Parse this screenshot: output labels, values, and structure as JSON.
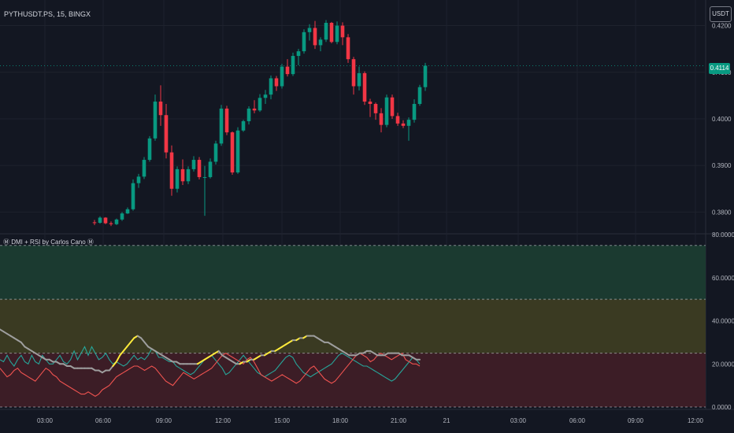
{
  "header": {
    "symbol": "PYTHUSDT.PS, 15, BINGX",
    "currency_button": "USDT",
    "last_price": "0.4114",
    "indicator_title": "Ⓜ DMI + RSI by Carlos Cano Ⓜ"
  },
  "colors": {
    "background": "#131722",
    "grid": "#1e222d",
    "up": "#089981",
    "down": "#f23645",
    "axis_text": "#b2b5be",
    "plus_di": "#26a69a",
    "minus_di": "#ef5350",
    "rsi_neutral": "#9e9e9e",
    "rsi_rising": "#ffeb3b",
    "zone_green": "#1b3a30",
    "zone_yellow": "#3a3a22",
    "zone_red": "#3c1d26"
  },
  "chart_data": [
    {
      "type": "candlestick",
      "x_ticks": [
        "03:00",
        "06:00",
        "09:00",
        "12:00",
        "15:00",
        "18:00",
        "21:00",
        "21",
        "03:00",
        "06:00",
        "09:00",
        "12:00"
      ],
      "y_ticks": [
        "0.4200",
        "0.4100",
        "0.4000",
        "0.3900",
        "0.3800"
      ],
      "ylim": [
        0.3755,
        0.4255
      ],
      "candles": [
        [
          0.3778,
          0.3783,
          0.3772,
          0.3777
        ],
        [
          0.3777,
          0.3791,
          0.3775,
          0.3788
        ],
        [
          0.3788,
          0.3789,
          0.3774,
          0.3776
        ],
        [
          0.3776,
          0.378,
          0.377,
          0.3774
        ],
        [
          0.3774,
          0.3786,
          0.3772,
          0.3784
        ],
        [
          0.3784,
          0.38,
          0.3781,
          0.3797
        ],
        [
          0.3797,
          0.381,
          0.3796,
          0.3806
        ],
        [
          0.3806,
          0.387,
          0.3803,
          0.3862
        ],
        [
          0.3862,
          0.3882,
          0.3852,
          0.3876
        ],
        [
          0.3876,
          0.3918,
          0.3871,
          0.3912
        ],
        [
          0.3912,
          0.3963,
          0.3908,
          0.3958
        ],
        [
          0.3958,
          0.4052,
          0.3953,
          0.4037
        ],
        [
          0.4037,
          0.4072,
          0.3985,
          0.4008
        ],
        [
          0.4008,
          0.4032,
          0.3915,
          0.3928
        ],
        [
          0.3928,
          0.3943,
          0.3835,
          0.385
        ],
        [
          0.385,
          0.3898,
          0.3842,
          0.3892
        ],
        [
          0.3892,
          0.3913,
          0.3858,
          0.3866
        ],
        [
          0.3866,
          0.3898,
          0.386,
          0.3892
        ],
        [
          0.3892,
          0.392,
          0.3887,
          0.3912
        ],
        [
          0.3912,
          0.3918,
          0.387,
          0.3875
        ],
        [
          0.3875,
          0.3899,
          0.3792,
          0.3875
        ],
        [
          0.3875,
          0.3915,
          0.3872,
          0.3908
        ],
        [
          0.3908,
          0.3953,
          0.3902,
          0.3947
        ],
        [
          0.3947,
          0.403,
          0.3942,
          0.4022
        ],
        [
          0.4022,
          0.4028,
          0.3965,
          0.3971
        ],
        [
          0.3971,
          0.3973,
          0.388,
          0.3885
        ],
        [
          0.3885,
          0.3982,
          0.3882,
          0.3975
        ],
        [
          0.3975,
          0.3998,
          0.3972,
          0.3995
        ],
        [
          0.3995,
          0.4027,
          0.3988,
          0.4022
        ],
        [
          0.4022,
          0.404,
          0.4012,
          0.4018
        ],
        [
          0.4018,
          0.4053,
          0.4015,
          0.4045
        ],
        [
          0.4045,
          0.4062,
          0.4032,
          0.4052
        ],
        [
          0.4052,
          0.4093,
          0.4042,
          0.4087
        ],
        [
          0.4087,
          0.4092,
          0.406,
          0.407
        ],
        [
          0.407,
          0.4118,
          0.4065,
          0.4112
        ],
        [
          0.4112,
          0.4128,
          0.4091,
          0.4096
        ],
        [
          0.4096,
          0.4142,
          0.4092,
          0.4135
        ],
        [
          0.4135,
          0.415,
          0.4115,
          0.4145
        ],
        [
          0.4145,
          0.4192,
          0.414,
          0.4186
        ],
        [
          0.4186,
          0.4203,
          0.4168,
          0.4195
        ],
        [
          0.4195,
          0.421,
          0.415,
          0.4158
        ],
        [
          0.4158,
          0.4175,
          0.4145,
          0.417
        ],
        [
          0.417,
          0.4212,
          0.4165,
          0.4206
        ],
        [
          0.4206,
          0.4208,
          0.4162,
          0.4165
        ],
        [
          0.4165,
          0.4209,
          0.416,
          0.42
        ],
        [
          0.42,
          0.4207,
          0.4158,
          0.4175
        ],
        [
          0.4175,
          0.4182,
          0.412,
          0.4128
        ],
        [
          0.4128,
          0.4133,
          0.4052,
          0.407
        ],
        [
          0.407,
          0.4112,
          0.4061,
          0.4098
        ],
        [
          0.4098,
          0.4102,
          0.403,
          0.4037
        ],
        [
          0.4037,
          0.4043,
          0.4004,
          0.4032
        ],
        [
          0.4032,
          0.4035,
          0.3998,
          0.4012
        ],
        [
          0.4012,
          0.4023,
          0.3971,
          0.3987
        ],
        [
          0.3987,
          0.4052,
          0.3982,
          0.4046
        ],
        [
          0.4046,
          0.4052,
          0.4,
          0.4006
        ],
        [
          0.4006,
          0.4013,
          0.3985,
          0.399
        ],
        [
          0.399,
          0.3997,
          0.398,
          0.3985
        ],
        [
          0.3985,
          0.4003,
          0.3953,
          0.3998
        ],
        [
          0.3998,
          0.4042,
          0.3992,
          0.4032
        ],
        [
          0.4032,
          0.4073,
          0.4028,
          0.4068
        ],
        [
          0.4068,
          0.412,
          0.406,
          0.4114
        ]
      ]
    },
    {
      "type": "line",
      "title": "Ⓜ DMI + RSI by Carlos Cano Ⓜ",
      "y_ticks": [
        "80.0000",
        "60.0000",
        "40.0000",
        "20.0000",
        "0.0000"
      ],
      "ylim": [
        0,
        80
      ],
      "levels": [
        0,
        25,
        50,
        75
      ],
      "series": [
        {
          "key": "plus",
          "values": [
            22,
            21,
            24,
            21,
            19,
            22,
            24,
            21,
            20,
            24,
            21,
            20,
            24,
            22,
            20,
            20,
            22,
            24,
            21,
            20,
            22,
            26,
            22,
            25,
            28,
            24,
            28,
            25,
            22,
            23,
            25,
            22,
            20,
            21,
            20,
            19,
            20,
            22,
            24,
            22,
            23,
            22,
            24,
            27,
            26,
            23,
            23,
            22,
            21,
            21,
            19,
            18,
            17,
            16,
            15,
            16,
            18,
            20,
            22,
            23,
            24,
            22,
            20,
            18,
            15,
            16,
            18,
            20,
            22,
            24,
            22,
            20,
            18,
            16,
            15,
            14,
            15,
            16,
            17,
            19,
            21,
            23,
            24,
            23,
            20,
            18,
            16,
            15,
            14,
            15,
            16,
            17,
            18,
            19,
            20,
            22,
            24,
            25,
            24,
            23,
            22,
            21,
            20,
            19,
            19,
            18,
            17,
            16,
            15,
            14,
            13,
            12,
            13,
            15,
            17,
            19,
            21,
            23,
            22,
            20
          ]
        },
        {
          "key": "minus",
          "values": [
            18,
            16,
            14,
            15,
            17,
            18,
            16,
            15,
            14,
            13,
            12,
            14,
            16,
            18,
            17,
            15,
            14,
            12,
            11,
            10,
            9,
            8,
            7,
            6,
            6,
            7,
            6,
            5,
            6,
            8,
            9,
            10,
            12,
            14,
            15,
            16,
            17,
            18,
            19,
            19,
            18,
            17,
            18,
            19,
            18,
            16,
            14,
            12,
            11,
            10,
            12,
            14,
            16,
            15,
            14,
            13,
            14,
            15,
            16,
            17,
            18,
            20,
            22,
            24,
            25,
            24,
            23,
            22,
            21,
            20,
            22,
            23,
            21,
            18,
            15,
            14,
            13,
            12,
            13,
            14,
            15,
            14,
            13,
            12,
            11,
            12,
            14,
            16,
            18,
            19,
            17,
            15,
            13,
            12,
            11,
            12,
            14,
            16,
            18,
            20,
            22,
            24,
            25,
            24,
            23,
            21,
            22,
            24,
            25,
            24,
            23,
            22,
            23,
            24,
            25,
            22,
            21,
            20,
            20,
            19
          ]
        },
        {
          "key": "rsi",
          "values": [
            36,
            35,
            34,
            33,
            32,
            31,
            30,
            28,
            27,
            26,
            25,
            24,
            23,
            22,
            22,
            21,
            21,
            20,
            20,
            19,
            19,
            18,
            18,
            18,
            18,
            18,
            18,
            17,
            17,
            16,
            17,
            17,
            19,
            21,
            24,
            26,
            28,
            30,
            32,
            33,
            32,
            30,
            28,
            27,
            26,
            25,
            24,
            23,
            22,
            21,
            21,
            20,
            20,
            20,
            20,
            20,
            20,
            21,
            22,
            23,
            24,
            25,
            26,
            24,
            23,
            22,
            21,
            20,
            20,
            21,
            21,
            22,
            22,
            23,
            24,
            24,
            25,
            26,
            26,
            27,
            28,
            29,
            30,
            31,
            31,
            32,
            32,
            33,
            33,
            33,
            32,
            31,
            30,
            30,
            29,
            28,
            27,
            26,
            25,
            24,
            24,
            24,
            25,
            25,
            26,
            26,
            25,
            24,
            24,
            24,
            25,
            25,
            25,
            25,
            24,
            24,
            24,
            23,
            22,
            22
          ]
        }
      ]
    }
  ]
}
